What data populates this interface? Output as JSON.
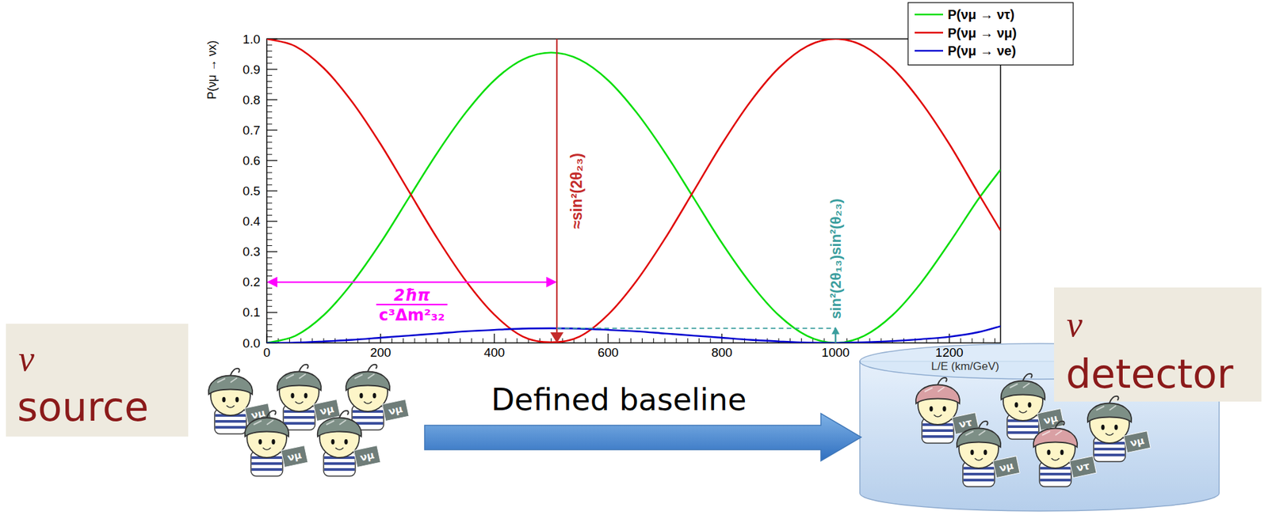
{
  "chart_data": {
    "type": "line",
    "x_label": "L/E (km/GeV)",
    "y_label": "P(νμ → νx)",
    "x": [
      0,
      50,
      100,
      150,
      200,
      250,
      300,
      350,
      400,
      450,
      500,
      550,
      600,
      650,
      700,
      750,
      800,
      850,
      900,
      950,
      1000,
      1050,
      1100,
      1150,
      1200,
      1250,
      1290
    ],
    "series": [
      {
        "name": "P(νμ → ντ)",
        "color": "#00dd00",
        "values": [
          0,
          0.023,
          0.091,
          0.197,
          0.329,
          0.478,
          0.626,
          0.758,
          0.864,
          0.932,
          0.955,
          0.932,
          0.864,
          0.758,
          0.626,
          0.478,
          0.329,
          0.197,
          0.091,
          0.023,
          0,
          0.023,
          0.091,
          0.197,
          0.329,
          0.47,
          0.57
        ]
      },
      {
        "name": "P(νμ → νμ)",
        "color": "#e00000",
        "values": [
          1,
          0.976,
          0.904,
          0.793,
          0.654,
          0.498,
          0.343,
          0.204,
          0.093,
          0.021,
          0.002,
          0.021,
          0.093,
          0.204,
          0.343,
          0.498,
          0.654,
          0.793,
          0.904,
          0.976,
          1,
          0.976,
          0.904,
          0.793,
          0.654,
          0.495,
          0.37
        ]
      },
      {
        "name": "P(νμ → νe)",
        "color": "#0000d0",
        "values": [
          0,
          0.001,
          0.005,
          0.01,
          0.017,
          0.024,
          0.031,
          0.038,
          0.043,
          0.047,
          0.048,
          0.047,
          0.043,
          0.038,
          0.031,
          0.024,
          0.017,
          0.01,
          0.005,
          0.001,
          0,
          0.002,
          0.006,
          0.012,
          0.02,
          0.035,
          0.055
        ]
      }
    ],
    "xlim": [
      0,
      1290
    ],
    "xticks": [
      0,
      200,
      400,
      600,
      800,
      1000,
      1200
    ],
    "ylim": [
      0,
      1
    ],
    "yticks": [
      {
        "value": 0,
        "label": "0.0"
      },
      0.1,
      0.2,
      0.3,
      0.4,
      0.5,
      0.6,
      0.7,
      0.8,
      0.9,
      {
        "value": 1,
        "label": "1.0"
      }
    ],
    "grid": false,
    "legend": "top-right",
    "annotations": [
      {
        "numerator": "2ħπ",
        "denominator": "c³Δm²₃₂",
        "color": "#ff00ff",
        "x": [
          0,
          510
        ],
        "y": 0.2
      },
      {
        "text": "≈sin²(2θ₂₃)",
        "color": "#c42b2b",
        "x": 510,
        "y": [
          0,
          1
        ]
      },
      {
        "text": "sin²(2θ₁₃)sin²(θ₂₃)",
        "color": "#3a9e9e",
        "x": 1000,
        "y": 0.048,
        "x_from": 510
      }
    ]
  },
  "source": {
    "symbol": "ν",
    "label": "source",
    "particles": [
      {
        "label": "νμ",
        "color": "#7d8f86"
      },
      {
        "label": "νμ",
        "color": "#7d8f86"
      },
      {
        "label": "νμ",
        "color": "#7d8f86"
      },
      {
        "label": "νμ",
        "color": "#7d8f86"
      },
      {
        "label": "νμ",
        "color": "#7d8f86"
      }
    ]
  },
  "baseline": {
    "label": "Defined baseline"
  },
  "detector": {
    "symbol": "ν",
    "label": "detector",
    "particles": [
      {
        "label": "ντ",
        "color": "#d9a0a4"
      },
      {
        "label": "νμ",
        "color": "#7d8f86"
      },
      {
        "label": "νμ",
        "color": "#7d8f86"
      },
      {
        "label": "νμ",
        "color": "#7d8f86"
      },
      {
        "label": "ντ",
        "color": "#d9a0a4"
      }
    ]
  }
}
